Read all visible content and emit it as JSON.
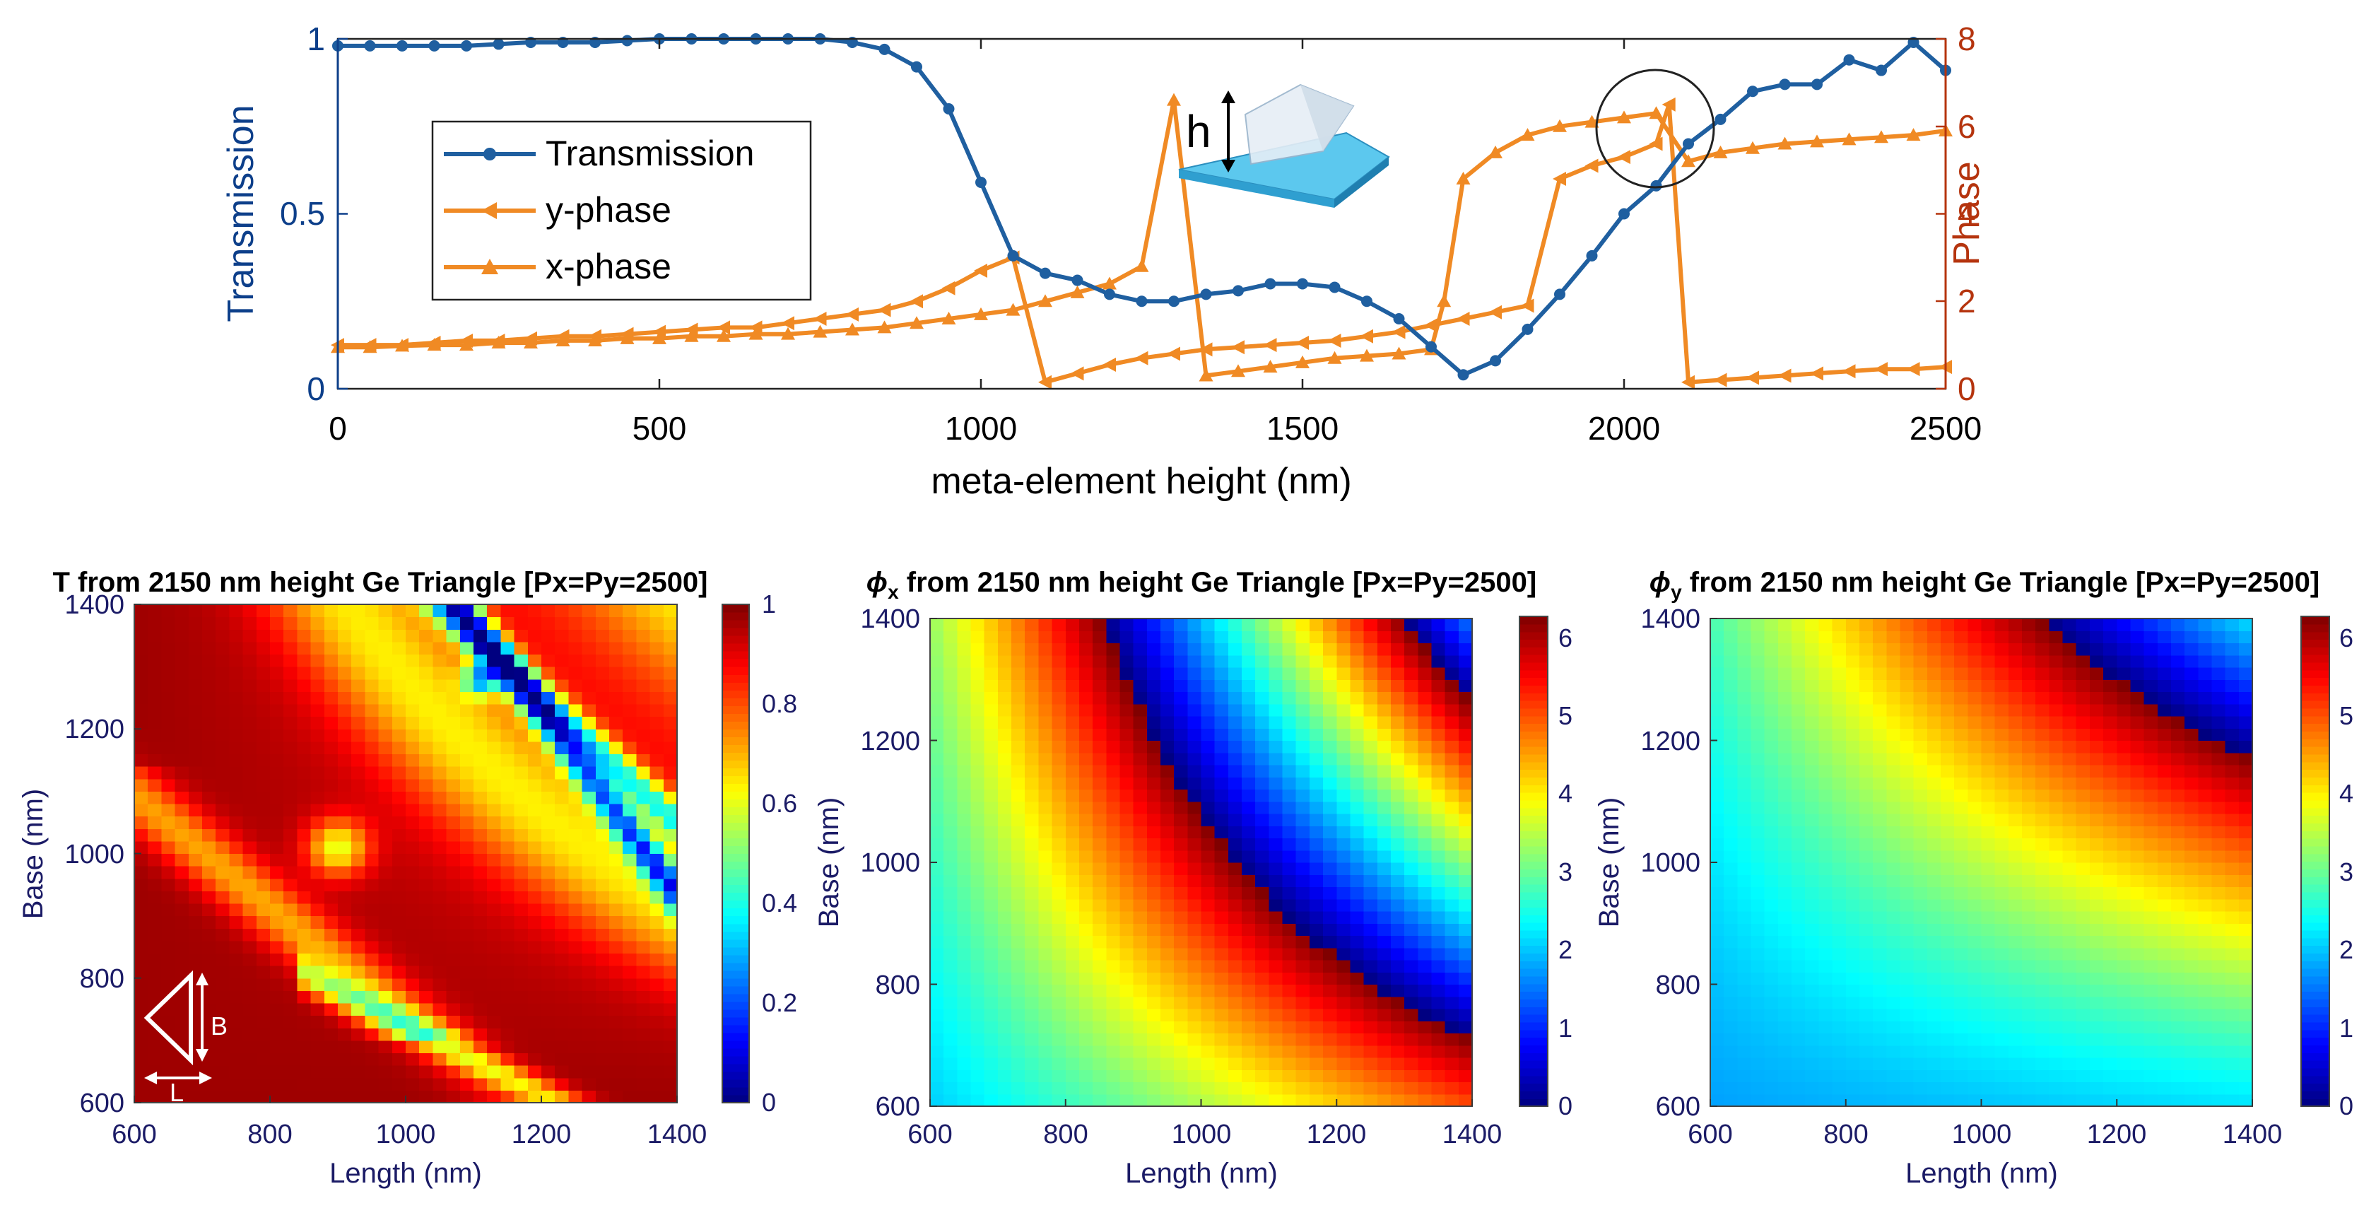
{
  "colors": {
    "transmission": "#1f5fa0",
    "phase": "#f08a24",
    "left_axis": "#0d3f8a",
    "right_axis": "#b5340e",
    "heatmap_text": "#1b1b66"
  },
  "chart_data": [
    {
      "type": "line",
      "title": "",
      "xlabel": "meta-element height (nm)",
      "ylabel_left": "Transmission",
      "ylabel_right": "Phase",
      "xlim": [
        0,
        2500
      ],
      "ylim_left": [
        0,
        1
      ],
      "ylim_right": [
        0,
        8
      ],
      "xticks": [
        "0",
        "500",
        "1000",
        "1500",
        "2000",
        "2500"
      ],
      "yticks_left": [
        "0",
        "0.5",
        "1"
      ],
      "yticks_right": [
        "0",
        "2",
        "4",
        "6",
        "8"
      ],
      "legend": [
        "Transmission",
        "y-phase",
        "x-phase"
      ],
      "legend_position": "upper-left",
      "inset_label": "h",
      "annotation": "circle near height 2050–2150 nm",
      "series": [
        {
          "name": "Transmission",
          "axis": "left",
          "marker": "circle",
          "x": [
            0,
            50,
            100,
            150,
            200,
            250,
            300,
            350,
            400,
            450,
            500,
            550,
            600,
            650,
            700,
            750,
            800,
            850,
            900,
            950,
            1000,
            1050,
            1100,
            1150,
            1200,
            1250,
            1300,
            1350,
            1400,
            1450,
            1500,
            1550,
            1600,
            1650,
            1700,
            1750,
            1800,
            1850,
            1900,
            1950,
            2000,
            2050,
            2100,
            2150,
            2200,
            2250,
            2300,
            2350,
            2400,
            2450,
            2500
          ],
          "y": [
            0.98,
            0.98,
            0.98,
            0.98,
            0.98,
            0.985,
            0.99,
            0.99,
            0.99,
            0.995,
            1.0,
            1.0,
            1.0,
            1.0,
            1.0,
            1.0,
            0.99,
            0.97,
            0.92,
            0.8,
            0.59,
            0.38,
            0.33,
            0.31,
            0.27,
            0.25,
            0.25,
            0.27,
            0.28,
            0.3,
            0.3,
            0.29,
            0.25,
            0.2,
            0.12,
            0.04,
            0.08,
            0.17,
            0.27,
            0.38,
            0.5,
            0.58,
            0.7,
            0.77,
            0.85,
            0.87,
            0.87,
            0.94,
            0.91,
            0.99,
            0.91
          ]
        },
        {
          "name": "y-phase",
          "axis": "right",
          "marker": "left-triangle",
          "x": [
            0,
            50,
            100,
            150,
            200,
            250,
            300,
            350,
            400,
            450,
            500,
            550,
            600,
            650,
            700,
            750,
            800,
            850,
            900,
            950,
            1000,
            1050,
            1100,
            1150,
            1200,
            1250,
            1300,
            1350,
            1400,
            1450,
            1500,
            1550,
            1600,
            1650,
            1700,
            1750,
            1800,
            1850,
            1900,
            1950,
            2000,
            2050,
            2070,
            2100,
            2150,
            2200,
            2250,
            2300,
            2350,
            2400,
            2450,
            2500
          ],
          "y": [
            1.0,
            1.0,
            1.0,
            1.05,
            1.1,
            1.1,
            1.15,
            1.2,
            1.2,
            1.25,
            1.3,
            1.35,
            1.4,
            1.4,
            1.5,
            1.6,
            1.7,
            1.8,
            2.0,
            2.3,
            2.7,
            3.0,
            0.15,
            0.35,
            0.55,
            0.7,
            0.8,
            0.9,
            0.95,
            1.0,
            1.05,
            1.1,
            1.2,
            1.3,
            1.45,
            1.6,
            1.75,
            1.9,
            4.8,
            5.1,
            5.3,
            5.6,
            6.5,
            0.15,
            0.2,
            0.25,
            0.3,
            0.35,
            0.4,
            0.45,
            0.45,
            0.5
          ]
        },
        {
          "name": "x-phase",
          "axis": "right",
          "marker": "up-triangle",
          "x": [
            0,
            50,
            100,
            150,
            200,
            250,
            300,
            350,
            400,
            450,
            500,
            550,
            600,
            650,
            700,
            750,
            800,
            850,
            900,
            950,
            1000,
            1050,
            1100,
            1150,
            1200,
            1250,
            1300,
            1350,
            1400,
            1450,
            1500,
            1550,
            1600,
            1650,
            1700,
            1720,
            1750,
            1800,
            1850,
            1900,
            1950,
            2000,
            2050,
            2100,
            2150,
            2200,
            2250,
            2300,
            2350,
            2400,
            2450,
            2500
          ],
          "y": [
            0.95,
            0.95,
            0.98,
            1.0,
            1.0,
            1.05,
            1.05,
            1.1,
            1.1,
            1.15,
            1.15,
            1.2,
            1.2,
            1.25,
            1.25,
            1.3,
            1.35,
            1.4,
            1.5,
            1.6,
            1.7,
            1.8,
            2.0,
            2.2,
            2.4,
            2.8,
            6.6,
            0.3,
            0.4,
            0.5,
            0.6,
            0.7,
            0.75,
            0.8,
            0.9,
            2.0,
            4.8,
            5.4,
            5.8,
            6.0,
            6.1,
            6.2,
            6.3,
            5.2,
            5.4,
            5.5,
            5.6,
            5.65,
            5.7,
            5.75,
            5.8,
            5.9
          ]
        }
      ]
    },
    {
      "type": "heatmap",
      "title_prefix": "T",
      "title_suffix": " from 2150 nm height Ge Triangle [Px=Py=2500]",
      "xlabel": "Length (nm)",
      "ylabel": "Base (nm)",
      "xlim": [
        600,
        1400
      ],
      "ylim": [
        600,
        1400
      ],
      "xticks": [
        "600",
        "800",
        "1000",
        "1200",
        "1400"
      ],
      "yticks": [
        "600",
        "800",
        "1000",
        "1200",
        "1400"
      ],
      "clim": [
        0,
        1
      ],
      "colorbar_ticks": [
        "0",
        "0.2",
        "0.4",
        "0.6",
        "0.8",
        "1"
      ],
      "grid": [
        40,
        40
      ],
      "field": "transmission_resonances",
      "inset_labels": [
        "B",
        "L"
      ]
    },
    {
      "type": "heatmap",
      "title_prefix": "ϕ",
      "title_sub": "x",
      "title_suffix": " from 2150 nm height Ge Triangle [Px=Py=2500]",
      "xlabel": "Length (nm)",
      "ylabel": "Base (nm)",
      "xlim": [
        600,
        1400
      ],
      "ylim": [
        600,
        1400
      ],
      "xticks": [
        "600",
        "800",
        "1000",
        "1200",
        "1400"
      ],
      "yticks": [
        "600",
        "800",
        "1000",
        "1200",
        "1400"
      ],
      "clim": [
        0,
        6.28
      ],
      "colorbar_ticks": [
        "0",
        "1",
        "2",
        "3",
        "4",
        "5",
        "6"
      ],
      "grid": [
        40,
        40
      ],
      "field": "x_phase"
    },
    {
      "type": "heatmap",
      "title_prefix": "ϕ",
      "title_sub": "y",
      "title_suffix": " from 2150 nm height Ge Triangle [Px=Py=2500]",
      "xlabel": "Length (nm)",
      "ylabel": "Base (nm)",
      "xlim": [
        600,
        1400
      ],
      "ylim": [
        600,
        1400
      ],
      "xticks": [
        "600",
        "800",
        "1000",
        "1200",
        "1400"
      ],
      "yticks": [
        "600",
        "800",
        "1000",
        "1200",
        "1400"
      ],
      "clim": [
        0,
        6.28
      ],
      "colorbar_ticks": [
        "0",
        "1",
        "2",
        "3",
        "4",
        "5",
        "6"
      ],
      "grid": [
        40,
        40
      ],
      "field": "y_phase"
    }
  ]
}
